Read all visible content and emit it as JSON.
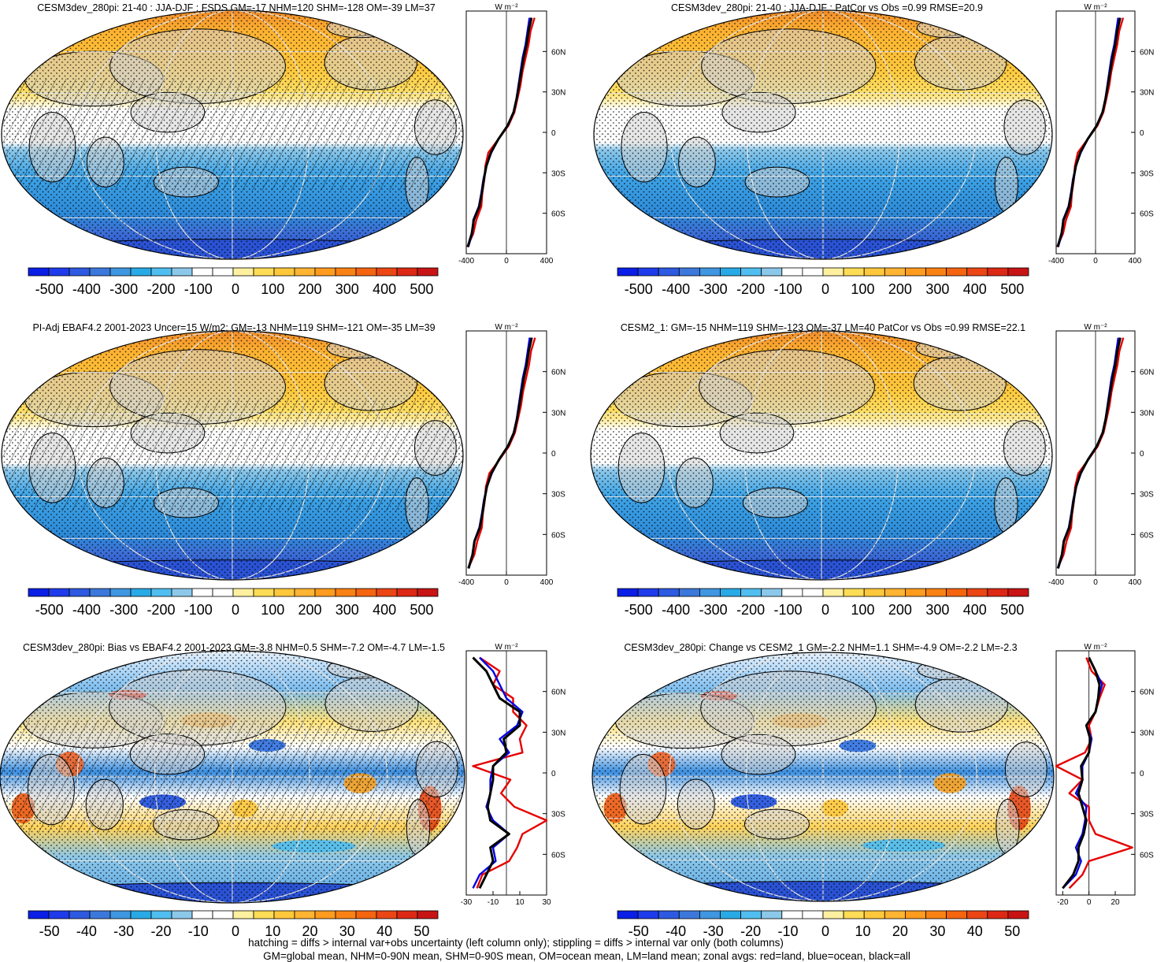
{
  "figure": {
    "footer": [
      "hatching = diffs > internal var+obs uncertainty (left column only); stippling = diffs > internal var only (both columns)",
      "GM=global mean, NHM=0-90N mean, SHM=0-90S mean, OM=ocean mean, LM=land mean; zonal avgs: red=land, blue=ocean, black=all"
    ]
  },
  "panels": [
    {
      "title": "CESM3dev_280pi: 21-40 : JJA-DJF : FSDS GM=-17 NHM=120 SHM=-128 OM=-39 LM=37",
      "kind": "abs",
      "hatched": true
    },
    {
      "title": "CESM3dev_280pi: 21-40 : JJA-DJF : PatCor vs Obs =0.99 RMSE=20.9",
      "kind": "abs",
      "hatched": false
    },
    {
      "title": "PI-Adj EBAF4.2 2001-2023 Uncer=15 W/m2: GM=-13 NHM=119 SHM=-121 OM=-35 LM=39",
      "kind": "abs",
      "hatched": true
    },
    {
      "title": "CESM2_1: GM=-15 NHM=119 SHM=-123 OM=-37 LM=40 PatCor vs Obs =0.99 RMSE=22.1",
      "kind": "abs",
      "hatched": false
    },
    {
      "title": "CESM3dev_280pi: Bias vs EBAF4.2 2001-2023 GM=-3.8 NHM=0.5 SHM=-7.2 OM=-4.7 LM=-1.5",
      "kind": "diff",
      "hatched": true
    },
    {
      "title": "CESM3dev_280pi: Change vs CESM2_1 GM=-2.2 NHM=1.1 SHM=-4.9 OM=-2.2 LM=-2.3",
      "kind": "diff",
      "hatched": false
    }
  ],
  "colorbars": {
    "abs": {
      "labels": [
        "-500",
        "-400",
        "-300",
        "-200",
        "-100",
        "0",
        "100",
        "200",
        "300",
        "400",
        "500"
      ],
      "colors": [
        "#0a1ee6",
        "#1e3ceb",
        "#2d5ae1",
        "#3c78dc",
        "#3f96e1",
        "#28aae6",
        "#50bef0",
        "#8cc8ea",
        "#ffffff",
        "#ffffff",
        "#fff0a0",
        "#ffdc55",
        "#ffc83c",
        "#ffb432",
        "#ff9b1e",
        "#fa8214",
        "#f5640f",
        "#eb4614",
        "#dc2814",
        "#c81414"
      ]
    },
    "diff": {
      "labels": [
        "-50",
        "-40",
        "-30",
        "-20",
        "-10",
        "0",
        "10",
        "20",
        "30",
        "40",
        "50"
      ],
      "colors": [
        "#0a1ee6",
        "#1e3ceb",
        "#2d5ae1",
        "#3c78dc",
        "#3f96e1",
        "#28aae6",
        "#50bef0",
        "#8cc8ea",
        "#ffffff",
        "#ffffff",
        "#fff0a0",
        "#ffdc55",
        "#ffc83c",
        "#ffb432",
        "#ff9b1e",
        "#fa8214",
        "#f5640f",
        "#eb4614",
        "#dc2814",
        "#c81414"
      ]
    }
  },
  "map_colors": {
    "land_mask": "#d2d2d2",
    "coast": "#000000",
    "grid": "#e6e6e6"
  },
  "zonal": {
    "unit": "W m⁻²",
    "latitude_ticks": [
      "60N",
      "30N",
      "0",
      "30S",
      "60S"
    ],
    "line_colors": {
      "land": "#e60000",
      "ocean": "#0000e6",
      "all": "#000000"
    }
  },
  "chart_data": [
    {
      "type": "line",
      "title": "CESM3dev_280pi: 21-40 : JJA-DJF : FSDS GM=-17 NHM=120 SHM=-128 OM=-39 LM=37",
      "xlabel": "W m⁻²",
      "ylabel": "",
      "xlim": [
        -400,
        400
      ],
      "ylim": [
        -90,
        90
      ],
      "xticks": [
        "-400",
        "0",
        "400"
      ],
      "yticks": [
        "60N",
        "30N",
        "0",
        "30S",
        "60S"
      ],
      "lat": [
        -85,
        -75,
        -65,
        -55,
        -45,
        -35,
        -25,
        -15,
        -5,
        5,
        15,
        25,
        35,
        45,
        55,
        65,
        75,
        85
      ],
      "series": [
        {
          "name": "land",
          "values": [
            -390,
            -330,
            -300,
            -250,
            -240,
            -220,
            -210,
            -180,
            -80,
            20,
            80,
            110,
            140,
            160,
            190,
            220,
            240,
            280
          ]
        },
        {
          "name": "ocean",
          "values": [
            -380,
            -340,
            -330,
            -275,
            -250,
            -230,
            -200,
            -150,
            -80,
            10,
            70,
            100,
            120,
            140,
            160,
            190,
            210,
            230
          ]
        },
        {
          "name": "all",
          "values": [
            -385,
            -345,
            -325,
            -270,
            -245,
            -225,
            -200,
            -155,
            -80,
            12,
            72,
            102,
            125,
            148,
            170,
            200,
            220,
            250
          ]
        }
      ]
    },
    {
      "type": "line",
      "title": "CESM3dev_280pi: 21-40 : JJA-DJF : PatCor vs Obs =0.99 RMSE=20.9",
      "xlabel": "W m⁻²",
      "ylabel": "",
      "xlim": [
        -400,
        400
      ],
      "ylim": [
        -90,
        90
      ],
      "xticks": [
        "-400",
        "0",
        "400"
      ],
      "yticks": [
        "60N",
        "30N",
        "0",
        "30S",
        "60S"
      ],
      "lat": [
        -85,
        -75,
        -65,
        -55,
        -45,
        -35,
        -25,
        -15,
        -5,
        5,
        15,
        25,
        35,
        45,
        55,
        65,
        75,
        85
      ],
      "series": [
        {
          "name": "land",
          "values": [
            -390,
            -330,
            -300,
            -250,
            -240,
            -220,
            -210,
            -180,
            -80,
            20,
            80,
            110,
            140,
            160,
            190,
            220,
            240,
            280
          ]
        },
        {
          "name": "ocean",
          "values": [
            -380,
            -340,
            -330,
            -275,
            -250,
            -230,
            -200,
            -150,
            -80,
            10,
            70,
            100,
            120,
            140,
            160,
            190,
            210,
            230
          ]
        },
        {
          "name": "all",
          "values": [
            -385,
            -345,
            -325,
            -270,
            -245,
            -225,
            -200,
            -155,
            -80,
            12,
            72,
            102,
            125,
            148,
            170,
            200,
            220,
            250
          ]
        }
      ]
    },
    {
      "type": "line",
      "title": "PI-Adj EBAF4.2 2001-2023 Uncer=15 W/m2: GM=-13 NHM=119 SHM=-121 OM=-35 LM=39",
      "xlabel": "W m⁻²",
      "ylabel": "",
      "xlim": [
        -400,
        400
      ],
      "ylim": [
        -90,
        90
      ],
      "xticks": [
        "-400",
        "0",
        "400"
      ],
      "yticks": [
        "60N",
        "30N",
        "0",
        "30S",
        "60S"
      ],
      "lat": [
        -85,
        -75,
        -65,
        -55,
        -45,
        -35,
        -25,
        -15,
        -5,
        5,
        15,
        25,
        35,
        45,
        55,
        65,
        75,
        85
      ],
      "series": [
        {
          "name": "land",
          "values": [
            -380,
            -320,
            -290,
            -245,
            -235,
            -215,
            -205,
            -170,
            -70,
            25,
            85,
            115,
            145,
            165,
            195,
            225,
            245,
            285
          ]
        },
        {
          "name": "ocean",
          "values": [
            -375,
            -335,
            -320,
            -270,
            -245,
            -225,
            -195,
            -145,
            -75,
            15,
            72,
            102,
            122,
            142,
            162,
            192,
            212,
            232
          ]
        },
        {
          "name": "all",
          "values": [
            -378,
            -338,
            -318,
            -265,
            -240,
            -220,
            -195,
            -150,
            -75,
            15,
            75,
            105,
            128,
            150,
            172,
            202,
            222,
            252
          ]
        }
      ]
    },
    {
      "type": "line",
      "title": "CESM2_1: GM=-15 NHM=119 SHM=-123 OM=-37 LM=40 PatCor vs Obs =0.99 RMSE=22.1",
      "xlabel": "W m⁻²",
      "ylabel": "",
      "xlim": [
        -400,
        400
      ],
      "ylim": [
        -90,
        90
      ],
      "xticks": [
        "-400",
        "0",
        "400"
      ],
      "yticks": [
        "60N",
        "30N",
        "0",
        "30S",
        "60S"
      ],
      "lat": [
        -85,
        -75,
        -65,
        -55,
        -45,
        -35,
        -25,
        -15,
        -5,
        5,
        15,
        25,
        35,
        45,
        55,
        65,
        75,
        85
      ],
      "series": [
        {
          "name": "land",
          "values": [
            -385,
            -325,
            -295,
            -248,
            -238,
            -218,
            -208,
            -175,
            -75,
            22,
            82,
            112,
            142,
            162,
            192,
            222,
            242,
            282
          ]
        },
        {
          "name": "ocean",
          "values": [
            -378,
            -338,
            -325,
            -272,
            -248,
            -228,
            -198,
            -148,
            -78,
            12,
            71,
            101,
            121,
            141,
            161,
            191,
            211,
            231
          ]
        },
        {
          "name": "all",
          "values": [
            -382,
            -342,
            -322,
            -268,
            -243,
            -223,
            -198,
            -153,
            -78,
            13,
            73,
            103,
            126,
            149,
            171,
            201,
            221,
            251
          ]
        }
      ]
    },
    {
      "type": "line",
      "title": "CESM3dev_280pi: Bias vs EBAF4.2 2001-2023 GM=-3.8 NHM=0.5 SHM=-7.2 OM=-4.7 LM=-1.5",
      "xlabel": "W m⁻²",
      "ylabel": "",
      "xlim": [
        -30,
        30
      ],
      "ylim": [
        -90,
        90
      ],
      "xticks": [
        "-30",
        "-10",
        "10",
        "30"
      ],
      "yticks": [
        "60N",
        "30N",
        "0",
        "30S",
        "60S"
      ],
      "lat": [
        -85,
        -75,
        -65,
        -55,
        -45,
        -35,
        -25,
        -15,
        -5,
        5,
        15,
        25,
        35,
        45,
        55,
        65,
        75,
        85
      ],
      "series": [
        {
          "name": "land",
          "values": [
            -22,
            -18,
            2,
            8,
            12,
            30,
            6,
            -4,
            3,
            -25,
            12,
            10,
            15,
            5,
            5,
            -10,
            -5,
            -20
          ]
        },
        {
          "name": "ocean",
          "values": [
            -25,
            -20,
            -8,
            -10,
            2,
            -10,
            -15,
            -12,
            -12,
            -10,
            2,
            -5,
            8,
            12,
            0,
            -5,
            -10,
            -20
          ]
        },
        {
          "name": "all",
          "values": [
            -20,
            -15,
            -10,
            -12,
            2,
            -12,
            -14,
            -12,
            -10,
            -10,
            0,
            -2,
            10,
            10,
            -5,
            -10,
            -15,
            -25
          ]
        }
      ]
    },
    {
      "type": "line",
      "title": "CESM3dev_280pi: Change vs CESM2_1 GM=-2.2 NHM=1.1 SHM=-4.9 OM=-2.2 LM=-2.3",
      "xlabel": "W m⁻²",
      "ylabel": "",
      "xlim": [
        -25,
        35
      ],
      "ylim": [
        -90,
        90
      ],
      "xticks": [
        "-20",
        "0",
        "20"
      ],
      "yticks": [
        "60N",
        "30N",
        "0",
        "30S",
        "60S"
      ],
      "lat": [
        -85,
        -75,
        -65,
        -55,
        -45,
        -35,
        -25,
        -15,
        -5,
        5,
        15,
        25,
        35,
        45,
        55,
        65,
        75,
        85
      ],
      "series": [
        {
          "name": "land",
          "values": [
            -15,
            -5,
            0,
            33,
            5,
            0,
            0,
            -15,
            -5,
            -25,
            -3,
            2,
            0,
            5,
            8,
            12,
            2,
            -2
          ]
        },
        {
          "name": "ocean",
          "values": [
            -20,
            -10,
            -6,
            -10,
            -5,
            -3,
            -2,
            -10,
            -5,
            -5,
            0,
            2,
            -2,
            5,
            7,
            10,
            5,
            0
          ]
        },
        {
          "name": "all",
          "values": [
            -20,
            -12,
            -8,
            -8,
            -4,
            -2,
            -5,
            -8,
            -5,
            -6,
            0,
            1,
            -2,
            5,
            7,
            8,
            5,
            0
          ]
        }
      ]
    }
  ]
}
